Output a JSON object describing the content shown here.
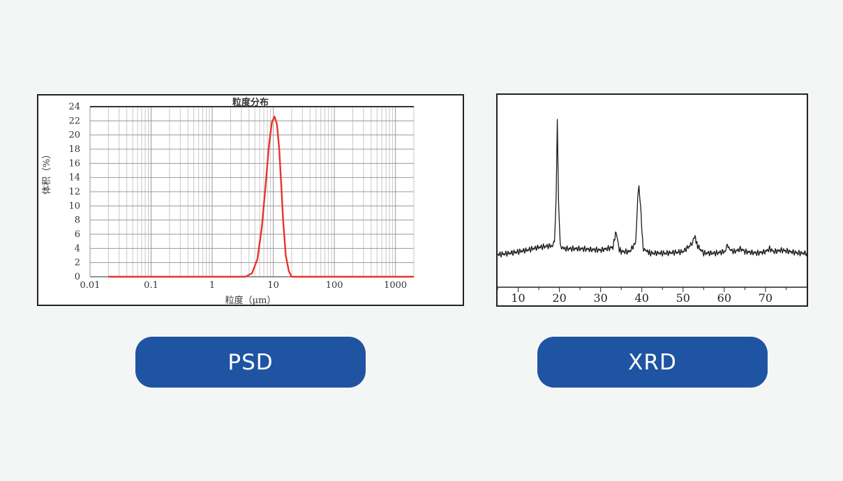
{
  "colors": {
    "background": "#f4f6f6",
    "button": "#1f54a3",
    "psd_curve": "#e8332a",
    "xrd_trace": "#1a1a1a"
  },
  "buttons": {
    "psd_label": "PSD",
    "xrd_label": "XRD"
  },
  "chart_data": [
    {
      "type": "line",
      "title": "粒度分布",
      "xlabel": "粒度（μm）",
      "ylabel": "体积（%）",
      "x_scale": "log",
      "xlim": [
        0.01,
        2000
      ],
      "ylim": [
        0,
        24
      ],
      "x_ticks": [
        "0.01",
        "0.1",
        "1",
        "10",
        "100",
        "1000"
      ],
      "y_ticks": [
        "0",
        "2",
        "4",
        "6",
        "8",
        "10",
        "12",
        "14",
        "16",
        "18",
        "20",
        "22",
        "24"
      ],
      "grid": true,
      "series": [
        {
          "x": [
            0.02,
            1,
            3.5,
            4.5,
            5.5,
            6.5,
            7.5,
            8.5,
            9.5,
            10.5,
            11.5,
            12.5,
            13.5,
            14.5,
            16,
            18,
            20,
            100,
            2000
          ],
          "y": [
            0,
            0,
            0,
            0.5,
            2.5,
            7,
            13,
            18.5,
            21.8,
            22.6,
            21.5,
            18,
            13,
            8,
            3,
            0.8,
            0,
            0,
            0
          ]
        }
      ]
    },
    {
      "type": "line",
      "title": "",
      "xlabel": "",
      "ylabel": "",
      "xlim": [
        5,
        80
      ],
      "x_ticks": [
        "10",
        "20",
        "30",
        "40",
        "50",
        "60",
        "70"
      ],
      "grid": false,
      "series": [
        {
          "x": [
            5,
            8,
            12,
            15,
            18,
            18.8,
            19.2,
            19.5,
            19.8,
            20.2,
            21,
            25,
            30,
            33,
            33.6,
            34,
            34.4,
            35,
            37,
            38.5,
            39,
            39.3,
            39.7,
            40.3,
            42,
            46,
            50,
            52,
            52.8,
            53.5,
            55,
            58,
            60,
            60.8,
            61.5,
            62.5,
            64,
            65,
            68,
            70,
            71,
            72,
            74,
            76,
            78,
            80
          ],
          "y": [
            8,
            9,
            11,
            13,
            14,
            16,
            45,
            100,
            45,
            15,
            12,
            12,
            11,
            13,
            22,
            20,
            12,
            10,
            10,
            16,
            45,
            55,
            40,
            12,
            9,
            9,
            10,
            15,
            21,
            14,
            9,
            9,
            10,
            14,
            11,
            10,
            12,
            10,
            9,
            10,
            12,
            10,
            11,
            10,
            9,
            9
          ]
        }
      ]
    }
  ]
}
